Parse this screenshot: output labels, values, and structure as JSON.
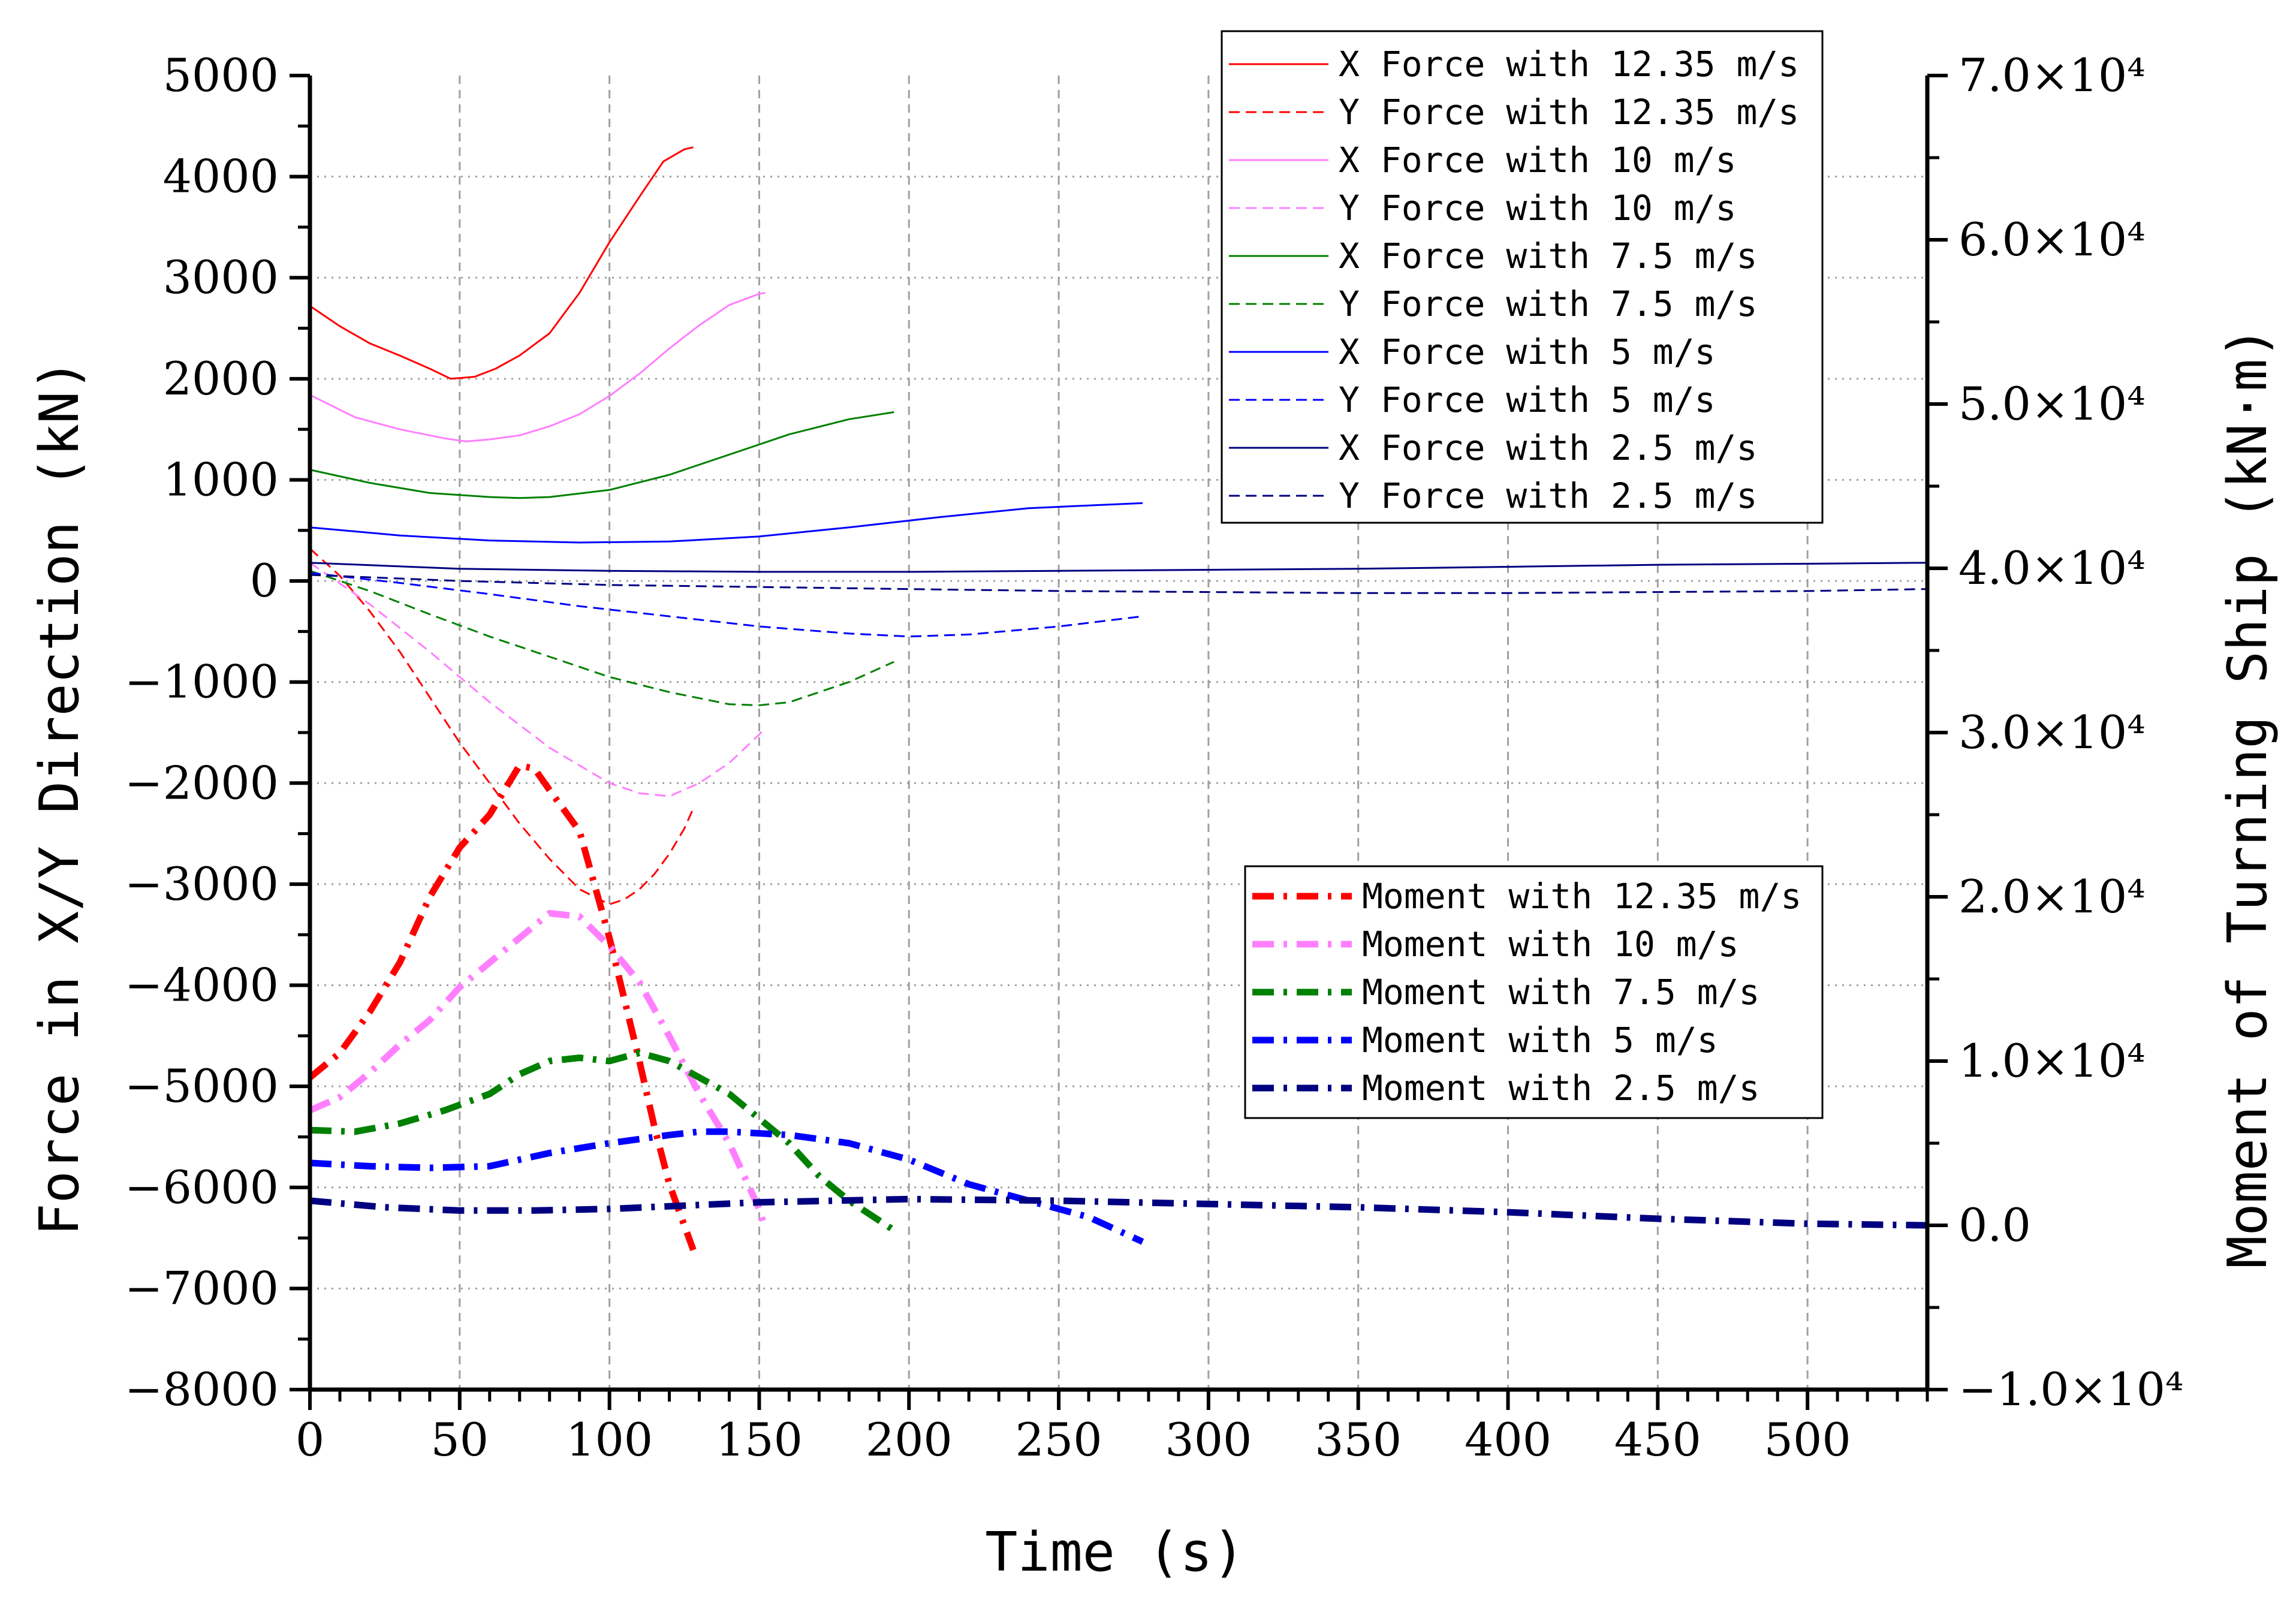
{
  "chart_data": {
    "type": "line",
    "title": "",
    "xlabel": "Time (s)",
    "ylabel": "Force in X/Y Direction (kN)",
    "y2label": "Moment of Turning Ship (kN·m)",
    "xlim": [
      0,
      540
    ],
    "ylim": [
      -8000,
      5000
    ],
    "y2lim": [
      -10000,
      70000
    ],
    "grid": true,
    "x_ticks": [
      "0",
      "50",
      "100",
      "150",
      "200",
      "250",
      "300",
      "350",
      "400",
      "450",
      "500"
    ],
    "y_ticks": [
      "5000",
      "4000",
      "3000",
      "2000",
      "1000",
      "0",
      "−1000",
      "−2000",
      "−3000",
      "−4000",
      "−5000",
      "−6000",
      "−7000",
      "−8000"
    ],
    "y2_ticks": [
      "7.0×10⁴",
      "6.0×10⁴",
      "5.0×10⁴",
      "4.0×10⁴",
      "3.0×10⁴",
      "2.0×10⁴",
      "1.0×10⁴",
      "0.0",
      "−1.0×10⁴"
    ],
    "force_series": [
      {
        "name": "X Force with 12.35 m/s",
        "color": "#ff0000",
        "dash": "solid",
        "x": [
          0,
          10,
          20,
          30,
          40,
          47,
          55,
          62,
          70,
          80,
          90,
          100,
          110,
          118,
          125,
          128
        ],
        "y": [
          2720,
          2520,
          2350,
          2230,
          2100,
          2000,
          2020,
          2100,
          2230,
          2450,
          2850,
          3350,
          3800,
          4150,
          4270,
          4290
        ]
      },
      {
        "name": "Y Force with 12.35 m/s",
        "color": "#ff0000",
        "dash": "dashed",
        "x": [
          0,
          10,
          20,
          30,
          40,
          50,
          60,
          70,
          80,
          90,
          100,
          105,
          110,
          115,
          120,
          125,
          128
        ],
        "y": [
          320,
          50,
          -300,
          -700,
          -1150,
          -1600,
          -2000,
          -2400,
          -2750,
          -3050,
          -3200,
          -3150,
          -3050,
          -2900,
          -2700,
          -2450,
          -2250
        ]
      },
      {
        "name": "X Force with 10 m/s",
        "color": "#ff7fff",
        "dash": "solid",
        "x": [
          0,
          15,
          30,
          45,
          52,
          60,
          70,
          80,
          90,
          100,
          110,
          120,
          130,
          140,
          150,
          152
        ],
        "y": [
          1840,
          1620,
          1500,
          1410,
          1380,
          1400,
          1440,
          1530,
          1650,
          1830,
          2050,
          2300,
          2530,
          2730,
          2840,
          2850
        ]
      },
      {
        "name": "Y Force with 10 m/s",
        "color": "#ff7fff",
        "dash": "dashed",
        "x": [
          0,
          20,
          40,
          60,
          80,
          100,
          110,
          120,
          130,
          140,
          150,
          152
        ],
        "y": [
          180,
          -230,
          -700,
          -1200,
          -1650,
          -2000,
          -2100,
          -2130,
          -2000,
          -1800,
          -1520,
          -1450
        ]
      },
      {
        "name": "X Force with 7.5 m/s",
        "color": "#008000",
        "dash": "solid",
        "x": [
          0,
          20,
          40,
          60,
          70,
          80,
          100,
          120,
          140,
          160,
          180,
          195
        ],
        "y": [
          1100,
          970,
          870,
          830,
          820,
          830,
          900,
          1050,
          1250,
          1450,
          1600,
          1670
        ]
      },
      {
        "name": "Y Force with 7.5 m/s",
        "color": "#008000",
        "dash": "dashed",
        "x": [
          0,
          20,
          40,
          60,
          80,
          100,
          120,
          140,
          150,
          160,
          170,
          180,
          195
        ],
        "y": [
          100,
          -100,
          -330,
          -550,
          -750,
          -950,
          -1100,
          -1220,
          -1230,
          -1200,
          -1100,
          -1000,
          -800
        ]
      },
      {
        "name": "X Force with 5 m/s",
        "color": "#0000ff",
        "dash": "solid",
        "x": [
          0,
          30,
          60,
          90,
          120,
          150,
          180,
          210,
          240,
          278
        ],
        "y": [
          530,
          450,
          400,
          380,
          390,
          440,
          530,
          630,
          720,
          770
        ]
      },
      {
        "name": "Y Force with 5 m/s",
        "color": "#0000ff",
        "dash": "dashed",
        "x": [
          0,
          30,
          60,
          90,
          120,
          150,
          180,
          200,
          220,
          250,
          278
        ],
        "y": [
          80,
          -20,
          -130,
          -250,
          -350,
          -450,
          -520,
          -550,
          -530,
          -450,
          -350
        ]
      },
      {
        "name": "X Force with 2.5 m/s",
        "color": "#000080",
        "dash": "solid",
        "x": [
          0,
          50,
          100,
          150,
          200,
          250,
          300,
          350,
          400,
          450,
          500,
          540
        ],
        "y": [
          180,
          120,
          100,
          90,
          90,
          100,
          110,
          120,
          140,
          160,
          170,
          180
        ]
      },
      {
        "name": "Y Force with 2.5 m/s",
        "color": "#000080",
        "dash": "dashed",
        "x": [
          0,
          50,
          100,
          150,
          200,
          250,
          300,
          350,
          400,
          450,
          500,
          540
        ],
        "y": [
          60,
          0,
          -40,
          -60,
          -80,
          -100,
          -110,
          -120,
          -120,
          -110,
          -100,
          -80
        ]
      }
    ],
    "moment_series": [
      {
        "name": "Moment with 12.35 m/s",
        "color": "#ff0000",
        "x": [
          0,
          10,
          20,
          30,
          40,
          50,
          60,
          70,
          75,
          80,
          90,
          100,
          110,
          115,
          120,
          125,
          128
        ],
        "y": [
          9000,
          10500,
          13000,
          16000,
          20000,
          23000,
          25000,
          28000,
          27800,
          26500,
          24000,
          17500,
          10000,
          6000,
          2500,
          0,
          -1500
        ]
      },
      {
        "name": "Moment with 10 m/s",
        "color": "#ff7fff",
        "x": [
          0,
          10,
          20,
          30,
          40,
          50,
          60,
          70,
          80,
          90,
          100,
          110,
          120,
          130,
          140,
          150,
          152
        ],
        "y": [
          7000,
          7800,
          9300,
          11000,
          12500,
          14500,
          16000,
          17500,
          19000,
          18800,
          17000,
          14800,
          11500,
          8000,
          5000,
          1000,
          -200
        ]
      },
      {
        "name": "Moment with 7.5 m/s",
        "color": "#008000",
        "x": [
          0,
          15,
          30,
          45,
          60,
          70,
          80,
          90,
          100,
          110,
          120,
          130,
          140,
          150,
          160,
          170,
          180,
          195
        ],
        "y": [
          5800,
          5700,
          6200,
          7000,
          8000,
          9200,
          10000,
          10200,
          10000,
          10500,
          10000,
          9000,
          8000,
          6500,
          5000,
          3000,
          1500,
          -300
        ]
      },
      {
        "name": "Moment with 5 m/s",
        "color": "#0000ff",
        "x": [
          0,
          20,
          40,
          60,
          80,
          100,
          120,
          130,
          140,
          160,
          180,
          200,
          220,
          240,
          260,
          278
        ],
        "y": [
          3800,
          3600,
          3500,
          3600,
          4400,
          5000,
          5500,
          5700,
          5700,
          5500,
          5000,
          4000,
          2500,
          1500,
          500,
          -1000
        ]
      },
      {
        "name": "Moment with 2.5 m/s",
        "color": "#000080",
        "x": [
          0,
          25,
          50,
          75,
          100,
          150,
          200,
          250,
          300,
          350,
          400,
          450,
          500,
          540
        ],
        "y": [
          1500,
          1100,
          900,
          900,
          1000,
          1400,
          1600,
          1500,
          1300,
          1100,
          800,
          400,
          100,
          0
        ]
      }
    ]
  }
}
